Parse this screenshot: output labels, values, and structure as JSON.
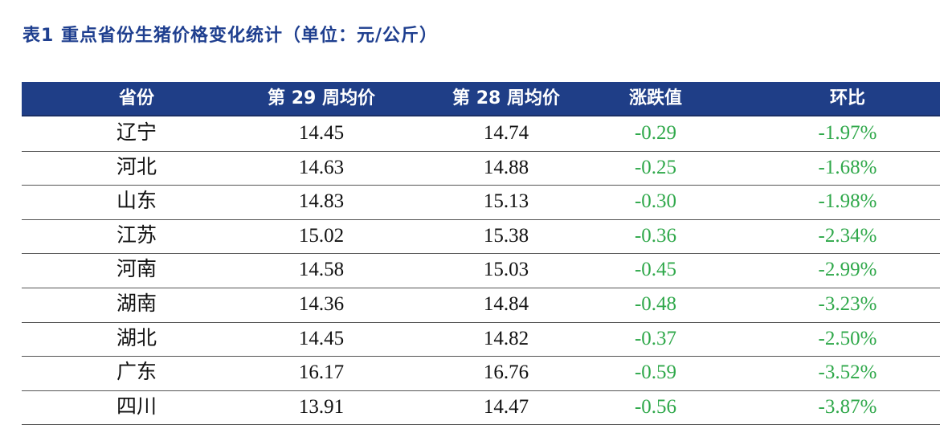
{
  "title": "表1 重点省份生猪价格变化统计（单位：元/公斤）",
  "table": {
    "header": [
      "省份",
      "第 29 周均价",
      "第 28 周均价",
      "涨跌值",
      "环比"
    ],
    "rows": [
      [
        "辽宁",
        "14.45",
        "14.74",
        "-0.29",
        "-1.97%"
      ],
      [
        "河北",
        "14.63",
        "14.88",
        "-0.25",
        "-1.68%"
      ],
      [
        "山东",
        "14.83",
        "15.13",
        "-0.30",
        "-1.98%"
      ],
      [
        "江苏",
        "15.02",
        "15.38",
        "-0.36",
        "-2.34%"
      ],
      [
        "河南",
        "14.58",
        "15.03",
        "-0.45",
        "-2.99%"
      ],
      [
        "湖南",
        "14.36",
        "14.84",
        "-0.48",
        "-3.23%"
      ],
      [
        "湖北",
        "14.45",
        "14.82",
        "-0.37",
        "-2.50%"
      ],
      [
        "广东",
        "16.17",
        "16.76",
        "-0.59",
        "-3.52%"
      ],
      [
        "四川",
        "13.91",
        "14.47",
        "-0.56",
        "-3.87%"
      ]
    ]
  }
}
